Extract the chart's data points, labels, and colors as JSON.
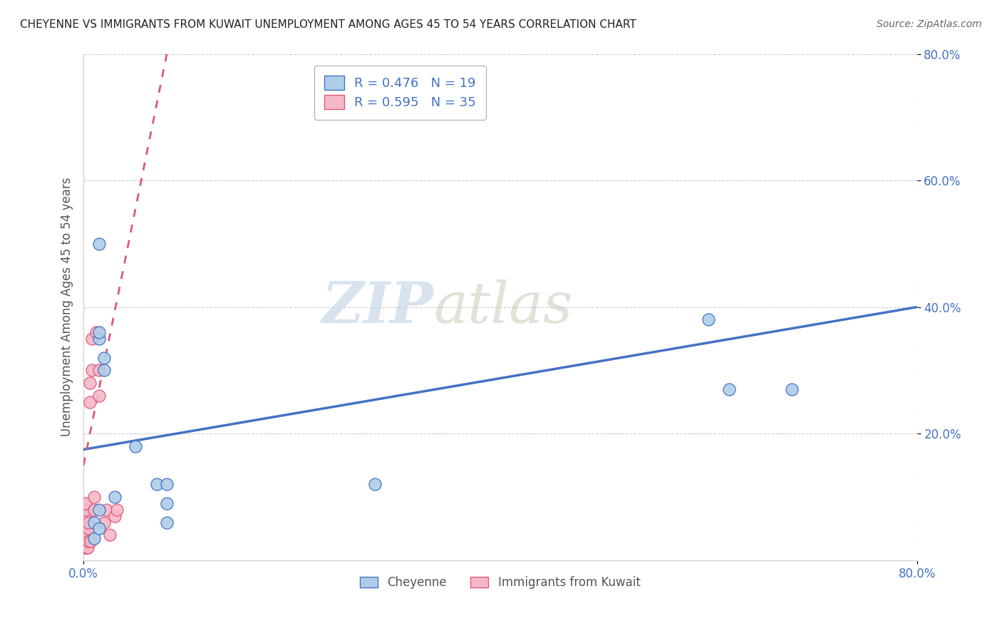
{
  "title": "CHEYENNE VS IMMIGRANTS FROM KUWAIT UNEMPLOYMENT AMONG AGES 45 TO 54 YEARS CORRELATION CHART",
  "source": "Source: ZipAtlas.com",
  "ylabel": "Unemployment Among Ages 45 to 54 years",
  "xlabel_bottom_cheyenne": "Cheyenne",
  "xlabel_bottom_kuwait": "Immigrants from Kuwait",
  "xlim": [
    0.0,
    0.8
  ],
  "ylim": [
    0.0,
    0.8
  ],
  "xticks": [
    0.0,
    0.8
  ],
  "yticks": [
    0.2,
    0.4,
    0.6,
    0.8
  ],
  "xticklabels": [
    "0.0%",
    "80.0%"
  ],
  "yticklabels": [
    "20.0%",
    "40.0%",
    "60.0%",
    "80.0%"
  ],
  "cheyenne_R": 0.476,
  "cheyenne_N": 19,
  "kuwait_R": 0.595,
  "kuwait_N": 35,
  "cheyenne_color": "#aecde8",
  "kuwait_color": "#f5b8c8",
  "cheyenne_line_color": "#4472c4",
  "kuwait_line_color": "#e05878",
  "tick_color": "#4472c4",
  "watermark_zip": "ZIP",
  "watermark_atlas": "atlas",
  "background_color": "#ffffff",
  "cheyenne_scatter_x": [
    0.01,
    0.01,
    0.015,
    0.015,
    0.015,
    0.015,
    0.015,
    0.02,
    0.02,
    0.03,
    0.05,
    0.07,
    0.08,
    0.08,
    0.08,
    0.28,
    0.6,
    0.62,
    0.68
  ],
  "cheyenne_scatter_y": [
    0.035,
    0.06,
    0.5,
    0.35,
    0.36,
    0.05,
    0.08,
    0.32,
    0.3,
    0.1,
    0.18,
    0.12,
    0.06,
    0.09,
    0.12,
    0.12,
    0.38,
    0.27,
    0.27
  ],
  "kuwait_scatter_x": [
    0.002,
    0.002,
    0.002,
    0.002,
    0.002,
    0.002,
    0.002,
    0.002,
    0.002,
    0.002,
    0.002,
    0.002,
    0.002,
    0.003,
    0.003,
    0.004,
    0.004,
    0.005,
    0.005,
    0.005,
    0.006,
    0.006,
    0.007,
    0.008,
    0.008,
    0.01,
    0.01,
    0.012,
    0.015,
    0.015,
    0.02,
    0.022,
    0.025,
    0.03,
    0.032
  ],
  "kuwait_scatter_y": [
    0.02,
    0.02,
    0.025,
    0.03,
    0.03,
    0.04,
    0.04,
    0.05,
    0.05,
    0.06,
    0.07,
    0.08,
    0.09,
    0.02,
    0.03,
    0.02,
    0.04,
    0.03,
    0.05,
    0.06,
    0.25,
    0.28,
    0.03,
    0.3,
    0.35,
    0.08,
    0.1,
    0.36,
    0.26,
    0.3,
    0.06,
    0.08,
    0.04,
    0.07,
    0.08
  ],
  "cheyenne_line_x0": 0.0,
  "cheyenne_line_y0": 0.175,
  "cheyenne_line_x1": 0.8,
  "cheyenne_line_y1": 0.4,
  "kuwait_line_x0": 0.0,
  "kuwait_line_y0": 0.15,
  "kuwait_line_x1": 0.08,
  "kuwait_line_y1": 0.8
}
